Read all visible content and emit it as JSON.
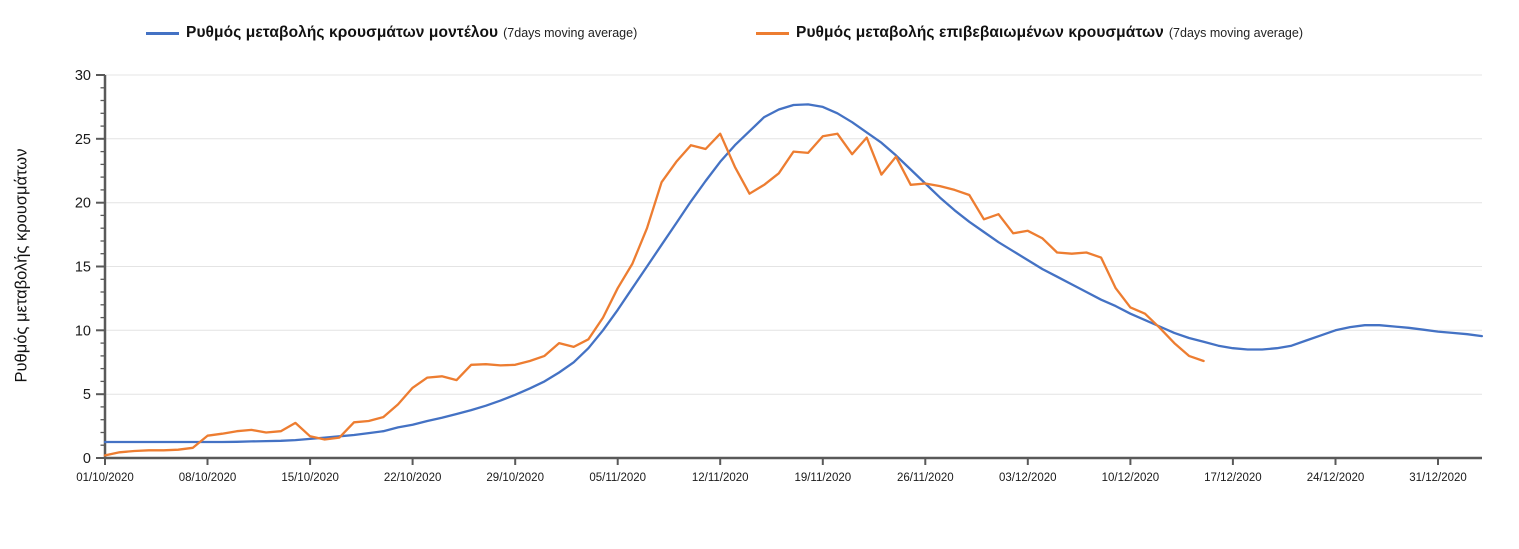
{
  "legend": [
    {
      "label": "Ρυθμός μεταβολής κρουσμάτων μοντέλου",
      "suffix": "(7days moving average)",
      "color": "#4472c4"
    },
    {
      "label": "Ρυθμός μεταβολής επιβεβαιωμένων κρουσμάτων",
      "suffix": "(7days moving average)",
      "color": "#ed7d31"
    }
  ],
  "chart_data": {
    "type": "line",
    "title": "",
    "xlabel": "",
    "ylabel": "Ρυθμός μεταβολής κρουσμάτων",
    "ylim": [
      0,
      30
    ],
    "y_ticks": [
      0,
      5,
      10,
      15,
      20,
      25,
      30
    ],
    "y_minor_tick_step": 1,
    "grid": "horizontal",
    "legend_position": "top",
    "x_start_date": "01/10/2020",
    "x_tick_interval_days": 7,
    "point_interval_days": 1,
    "x_tick_labels": [
      "01/10/2020",
      "08/10/2020",
      "15/10/2020",
      "22/10/2020",
      "29/10/2020",
      "05/11/2020",
      "12/11/2020",
      "19/11/2020",
      "26/11/2020",
      "03/12/2020",
      "10/12/2020",
      "17/12/2020",
      "24/12/2020",
      "31/12/2020"
    ],
    "colors": {
      "grid": "#e4e4e4",
      "axis": "#595959",
      "text": "#1a1a1a"
    },
    "series": [
      {
        "id": "model",
        "name": "Ρυθμός μεταβολής κρουσμάτων μοντέλου (7days moving average)",
        "color": "#4472c4",
        "values": [
          1.25,
          1.25,
          1.25,
          1.25,
          1.25,
          1.25,
          1.25,
          1.25,
          1.25,
          1.27,
          1.3,
          1.32,
          1.35,
          1.4,
          1.5,
          1.6,
          1.7,
          1.8,
          1.95,
          2.1,
          2.4,
          2.6,
          2.9,
          3.15,
          3.45,
          3.75,
          4.1,
          4.5,
          4.95,
          5.45,
          6.0,
          6.7,
          7.5,
          8.6,
          10.0,
          11.6,
          13.3,
          15.0,
          16.7,
          18.4,
          20.1,
          21.7,
          23.2,
          24.5,
          25.6,
          26.7,
          27.3,
          27.65,
          27.7,
          27.5,
          27.0,
          26.3,
          25.5,
          24.7,
          23.7,
          22.6,
          21.5,
          20.4,
          19.4,
          18.5,
          17.7,
          16.9,
          16.2,
          15.5,
          14.8,
          14.2,
          13.6,
          13.0,
          12.4,
          11.9,
          11.3,
          10.8,
          10.3,
          9.8,
          9.4,
          9.1,
          8.8,
          8.6,
          8.5,
          8.5,
          8.6,
          8.8,
          9.2,
          9.6,
          10.0,
          10.25,
          10.4,
          10.4,
          10.3,
          10.2,
          10.05,
          9.9,
          9.8,
          9.7,
          9.55
        ]
      },
      {
        "id": "confirmed",
        "name": "Ρυθμός μεταβολής επιβεβαιωμένων κρουσμάτων (7days moving average)",
        "color": "#ed7d31",
        "values": [
          0.2,
          0.45,
          0.55,
          0.6,
          0.6,
          0.65,
          0.8,
          1.75,
          1.9,
          2.1,
          2.2,
          2.0,
          2.1,
          2.75,
          1.7,
          1.45,
          1.6,
          2.8,
          2.9,
          3.2,
          4.2,
          5.5,
          6.3,
          6.4,
          6.1,
          7.3,
          7.35,
          7.25,
          7.3,
          7.6,
          8.0,
          9.0,
          8.7,
          9.3,
          11.0,
          13.3,
          15.2,
          18.0,
          21.6,
          23.2,
          24.5,
          24.2,
          25.4,
          22.8,
          20.7,
          21.4,
          22.3,
          24.0,
          23.9,
          25.2,
          25.4,
          23.8,
          25.1,
          22.2,
          23.6,
          21.4,
          21.5,
          21.3,
          21.0,
          20.6,
          18.7,
          19.1,
          17.6,
          17.8,
          17.2,
          16.1,
          16.0,
          16.1,
          15.7,
          13.3,
          11.8,
          11.3,
          10.2,
          9.0,
          8.0,
          7.6
        ]
      }
    ]
  }
}
